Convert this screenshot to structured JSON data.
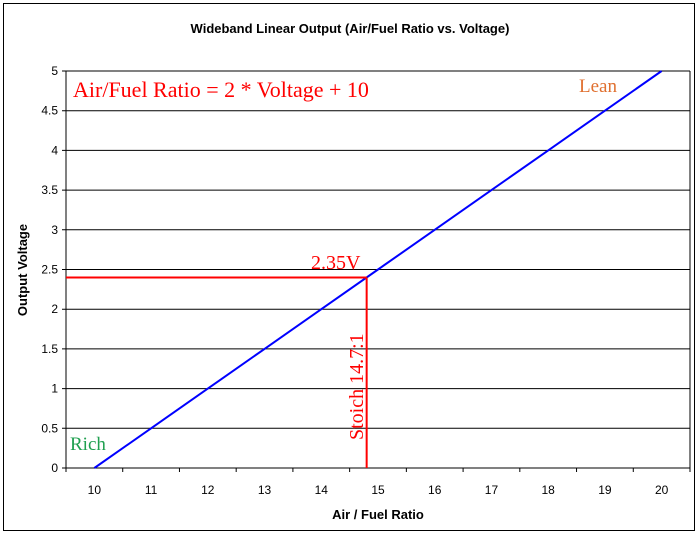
{
  "chart_data": {
    "type": "line",
    "title": "Wideband Linear Output (Air/Fuel Ratio vs. Voltage)",
    "xlabel": "Air / Fuel Ratio",
    "ylabel": "Output Voltage",
    "categories": [
      "10",
      "11",
      "12",
      "13",
      "14",
      "15",
      "16",
      "17",
      "18",
      "19",
      "20"
    ],
    "x_ticks": [
      10,
      11,
      12,
      13,
      14,
      15,
      16,
      17,
      18,
      19,
      20
    ],
    "y_ticks": [
      "0",
      "0.5",
      "1",
      "1.5",
      "2",
      "2.5",
      "3",
      "3.5",
      "4",
      "4.5",
      "5"
    ],
    "ylim": [
      0,
      5
    ],
    "xlim": [
      9.5,
      20.5
    ],
    "grid": "horizontal",
    "series": [
      {
        "name": "Output Voltage",
        "color": "#0000ff",
        "x": [
          10,
          11,
          12,
          13,
          14,
          15,
          16,
          17,
          18,
          19,
          20
        ],
        "y": [
          0,
          0.5,
          1,
          1.5,
          2,
          2.5,
          3,
          3.5,
          4,
          4.5,
          5
        ]
      }
    ],
    "reference": {
      "x": 14.8,
      "y": 2.4,
      "color": "#ff0000"
    },
    "annotations": {
      "equation": "Air/Fuel Ratio = 2 * Voltage + 10",
      "voltage_label": "2.35V",
      "stoich_label": "Stoich 14.7:1",
      "lean": "Lean",
      "rich": "Rich"
    },
    "colors": {
      "equation": "#ff0000",
      "lean": "#e07030",
      "rich": "#20a050",
      "grid": "#000000"
    }
  }
}
